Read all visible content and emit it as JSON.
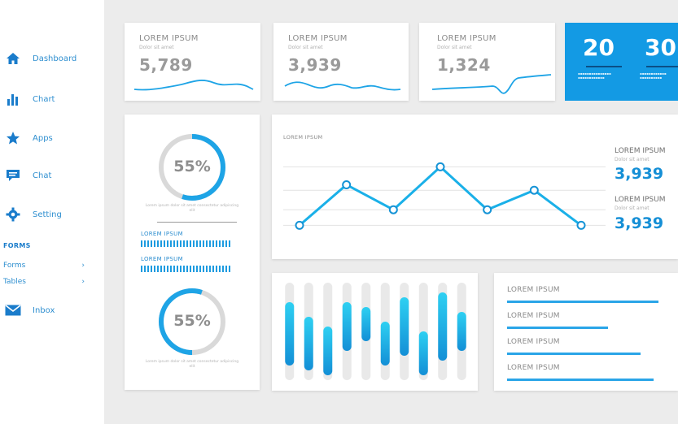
{
  "sidebar": {
    "items": [
      {
        "label": "Dashboard",
        "icon": "home-icon"
      },
      {
        "label": "Chart",
        "icon": "bar-chart-icon"
      },
      {
        "label": "Apps",
        "icon": "star-icon"
      },
      {
        "label": "Chat",
        "icon": "chat-icon"
      },
      {
        "label": "Setting",
        "icon": "gear-icon"
      }
    ],
    "forms_heading": "FORMS",
    "sub_items": [
      {
        "label": "Forms",
        "arrow": "›"
      },
      {
        "label": "Tables",
        "arrow": "›"
      }
    ],
    "inbox": {
      "label": "Inbox",
      "icon": "mail-icon"
    }
  },
  "stat_cards": [
    {
      "title": "LOREM IPSUM",
      "subtitle": "Dolor sit amet",
      "value": "5,789"
    },
    {
      "title": "LOREM IPSUM",
      "subtitle": "Dolor sit amet",
      "value": "3,939"
    },
    {
      "title": "LOREM IPSUM",
      "subtitle": "Dolor sit amet",
      "value": "1,324"
    }
  ],
  "blue_card": {
    "numbers": [
      "20",
      "30"
    ]
  },
  "donut_panel": {
    "top_percent": "55%",
    "top_value": 0.55,
    "caption": "Lorem ipsum dolor sit amet consectetur adipiscing elit",
    "bar_labels": [
      "LOREM IPSUM",
      "LOREM IPSUM"
    ],
    "bottom_percent": "55%",
    "bottom_value": 0.55,
    "bottom_caption": "Lorem ipsum dolor sit amet consectetur adipiscing elit"
  },
  "line_panel": {
    "title": "LOREM IPSUM",
    "side_stats": [
      {
        "title": "LOREM IPSUM",
        "subtitle": "Dolor sit amet",
        "value": "3,939"
      },
      {
        "title": "LOREM IPSUM",
        "subtitle": "Dolor sit amet",
        "value": "3,939"
      }
    ]
  },
  "chart_data": {
    "type": "line",
    "x": [
      1,
      2,
      3,
      4,
      5,
      6,
      7
    ],
    "series": [
      {
        "values": [
          10,
          62,
          30,
          85,
          30,
          55,
          10
        ]
      }
    ],
    "ylim": [
      0,
      100
    ],
    "grid": true,
    "color": "#1ab0e8"
  },
  "bar_panel": {
    "bars": [
      {
        "start": 0.2,
        "end": 0.85
      },
      {
        "start": 0.35,
        "end": 0.9
      },
      {
        "start": 0.45,
        "end": 0.95
      },
      {
        "start": 0.2,
        "end": 0.7
      },
      {
        "start": 0.25,
        "end": 0.6
      },
      {
        "start": 0.4,
        "end": 0.85
      },
      {
        "start": 0.15,
        "end": 0.75
      },
      {
        "start": 0.5,
        "end": 0.95
      },
      {
        "start": 0.1,
        "end": 0.8
      },
      {
        "start": 0.3,
        "end": 0.7
      }
    ],
    "color": "#19a9e6"
  },
  "progress_panel": {
    "items": [
      {
        "label": "LOREM IPSUM",
        "value": 0.93
      },
      {
        "label": "LOREM IPSUM",
        "value": 0.62
      },
      {
        "label": "LOREM IPSUM",
        "value": 0.82
      },
      {
        "label": "LOREM IPSUM",
        "value": 0.9
      }
    ]
  }
}
